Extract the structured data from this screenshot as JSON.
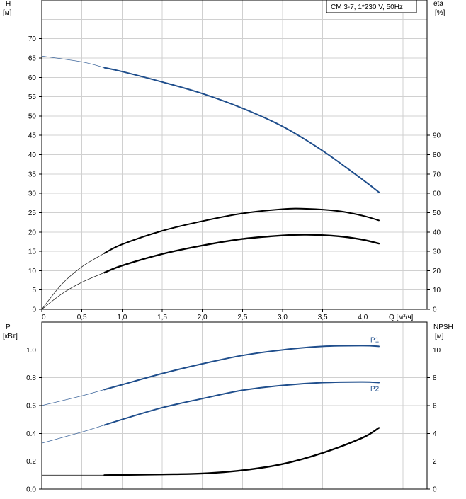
{
  "chart_data": [
    {
      "type": "line",
      "title": "CM 3-7, 1*230 V, 50Hz",
      "left_axis": {
        "label_top": "H",
        "label_unit": "[м]",
        "range": [
          0,
          80
        ],
        "ticks": [
          0,
          5,
          10,
          15,
          20,
          25,
          30,
          35,
          40,
          45,
          50,
          55,
          60,
          65,
          70
        ]
      },
      "right_axis": {
        "label_top": "eta",
        "label_unit": "[%]",
        "range": [
          0,
          160
        ],
        "ticks": [
          0,
          10,
          20,
          30,
          40,
          50,
          60,
          70,
          80,
          90
        ]
      },
      "x_axis": {
        "label": "Q [м³/ч]",
        "range": [
          0,
          4.8
        ],
        "ticks": [
          0,
          0.5,
          1.0,
          1.5,
          2.0,
          2.5,
          3.0,
          3.5,
          4.0
        ],
        "tick_labels": [
          "0",
          "0,5",
          "1,0",
          "1,5",
          "2,0",
          "2,5",
          "3,0",
          "3,5",
          "4,0"
        ]
      },
      "grid": true,
      "series": [
        {
          "axis": "left",
          "color": "#1f4e8c",
          "x_start_bold": 0.78,
          "points": [
            [
              0,
              65.5
            ],
            [
              0.5,
              64
            ],
            [
              0.78,
              62.5
            ],
            [
              1.0,
              61.5
            ],
            [
              1.5,
              58.8
            ],
            [
              2.0,
              55.8
            ],
            [
              2.5,
              52
            ],
            [
              3.0,
              47.3
            ],
            [
              3.5,
              41
            ],
            [
              4.0,
              33.5
            ],
            [
              4.2,
              30.3
            ]
          ]
        },
        {
          "axis": "left",
          "color": "#000000",
          "x_start_bold": 0.78,
          "points": [
            [
              0,
              0
            ],
            [
              0.25,
              6.5
            ],
            [
              0.5,
              11
            ],
            [
              0.78,
              14.5
            ],
            [
              1.0,
              16.8
            ],
            [
              1.5,
              20.3
            ],
            [
              2.0,
              22.8
            ],
            [
              2.5,
              24.8
            ],
            [
              3.0,
              25.9
            ],
            [
              3.3,
              26
            ],
            [
              3.7,
              25.4
            ],
            [
              4.0,
              24.2
            ],
            [
              4.2,
              23
            ]
          ]
        },
        {
          "axis": "left",
          "color": "#000000",
          "x_start_bold": 0.78,
          "points": [
            [
              0,
              0
            ],
            [
              0.25,
              4
            ],
            [
              0.5,
              7
            ],
            [
              0.78,
              9.5
            ],
            [
              1.0,
              11.3
            ],
            [
              1.5,
              14.3
            ],
            [
              2.0,
              16.5
            ],
            [
              2.5,
              18.2
            ],
            [
              3.0,
              19.1
            ],
            [
              3.3,
              19.3
            ],
            [
              3.7,
              18.9
            ],
            [
              4.0,
              18
            ],
            [
              4.2,
              17
            ]
          ]
        }
      ]
    },
    {
      "type": "line",
      "left_axis": {
        "label_top": "P",
        "label_unit": "[кВт]",
        "range": [
          0,
          1.2
        ],
        "ticks": [
          0.0,
          0.2,
          0.4,
          0.6,
          0.8,
          1.0
        ],
        "tick_labels": [
          "0.0",
          "0.2",
          "0.4",
          "0.6",
          "0.8",
          "1.0"
        ]
      },
      "right_axis": {
        "label_top": "NPSH",
        "label_unit": "[м]",
        "range": [
          0,
          12
        ],
        "ticks": [
          0,
          2,
          4,
          6,
          8,
          10
        ]
      },
      "x_axis": {
        "range": [
          0,
          4.8
        ]
      },
      "grid": true,
      "series": [
        {
          "name": "P1",
          "axis": "left",
          "color": "#1f4e8c",
          "x_start_bold": 0.78,
          "points": [
            [
              0,
              0.6
            ],
            [
              0.5,
              0.67
            ],
            [
              0.78,
              0.715
            ],
            [
              1.0,
              0.75
            ],
            [
              1.5,
              0.83
            ],
            [
              2.0,
              0.9
            ],
            [
              2.5,
              0.96
            ],
            [
              3.0,
              1.0
            ],
            [
              3.5,
              1.025
            ],
            [
              4.0,
              1.03
            ],
            [
              4.2,
              1.025
            ]
          ]
        },
        {
          "name": "P2",
          "axis": "left",
          "color": "#1f4e8c",
          "x_start_bold": 0.78,
          "points": [
            [
              0,
              0.33
            ],
            [
              0.5,
              0.41
            ],
            [
              0.78,
              0.46
            ],
            [
              1.0,
              0.5
            ],
            [
              1.5,
              0.585
            ],
            [
              2.0,
              0.65
            ],
            [
              2.5,
              0.71
            ],
            [
              3.0,
              0.745
            ],
            [
              3.5,
              0.765
            ],
            [
              4.0,
              0.77
            ],
            [
              4.2,
              0.765
            ]
          ]
        },
        {
          "axis": "right",
          "color": "#000000",
          "x_start_bold": 0.78,
          "points": [
            [
              0,
              1.0
            ],
            [
              0.5,
              1.0
            ],
            [
              0.78,
              1.0
            ],
            [
              1.0,
              1.02
            ],
            [
              1.5,
              1.06
            ],
            [
              2.0,
              1.12
            ],
            [
              2.5,
              1.35
            ],
            [
              3.0,
              1.8
            ],
            [
              3.5,
              2.6
            ],
            [
              4.0,
              3.7
            ],
            [
              4.2,
              4.4
            ]
          ]
        }
      ]
    }
  ]
}
